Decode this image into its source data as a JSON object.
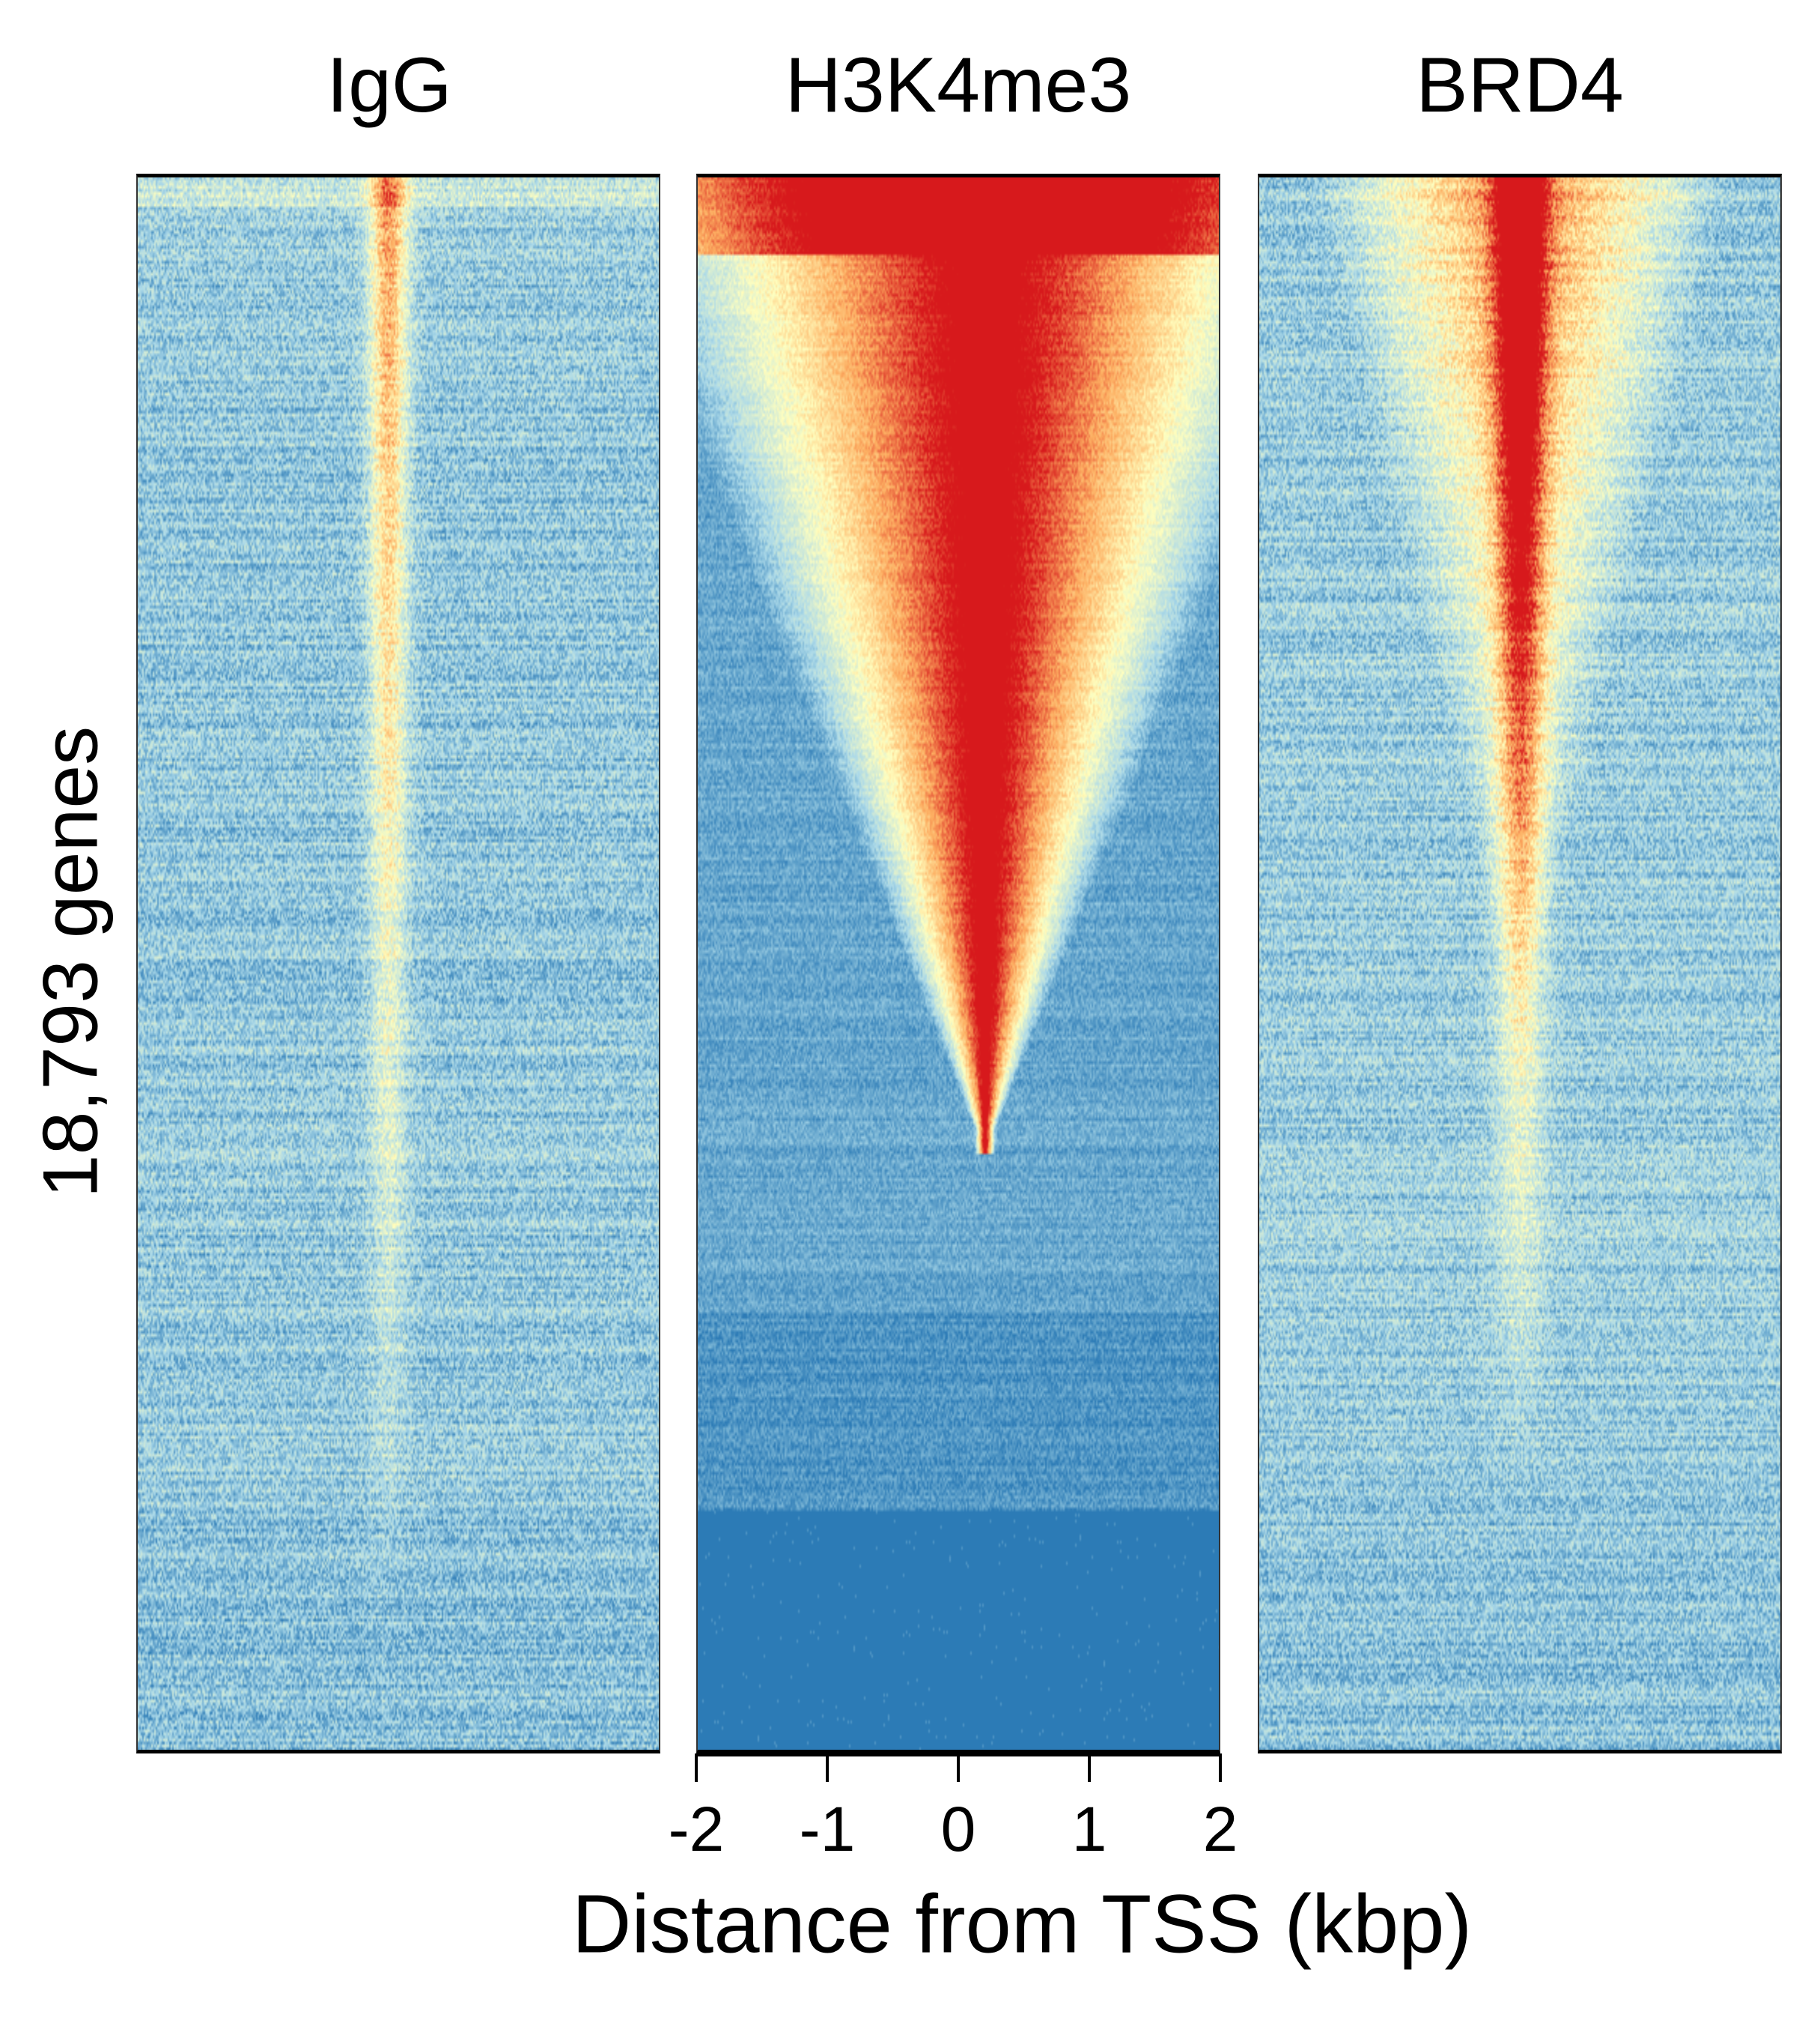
{
  "chart_data": {
    "type": "heatmap",
    "panels": [
      {
        "title": "IgG",
        "profile": "weak_tss_enrichment"
      },
      {
        "title": "H3K4me3",
        "profile": "strong_broad_tss_enrichment_sorted"
      },
      {
        "title": "BRD4",
        "profile": "moderate_tss_enrichment"
      }
    ],
    "ylabel": "18,793 genes",
    "xlabel": "Distance from TSS (kbp)",
    "x_ticks": [
      "-2",
      "-1",
      "0",
      "1",
      "2"
    ],
    "x_tick_values": [
      -2,
      -1,
      0,
      1,
      2
    ],
    "xlim": [
      -2,
      2
    ],
    "colormap": [
      "#2c7bb6",
      "#abd9e9",
      "#ffffbf",
      "#fdae61",
      "#d7191c"
    ],
    "grid": false
  }
}
